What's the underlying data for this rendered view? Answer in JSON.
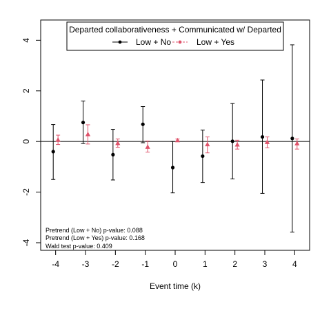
{
  "chart_data": {
    "type": "scatter",
    "xlabel": "Event time (k)",
    "ylabel": "",
    "x_ticks": [
      -4,
      -3,
      -2,
      -1,
      0,
      1,
      2,
      3,
      4
    ],
    "y_ticks": [
      -4,
      -2,
      0,
      2,
      4
    ],
    "xlim": [
      -4.5,
      4.5
    ],
    "ylim": [
      -4.3,
      4.8
    ],
    "grid": false,
    "reference_line": 0,
    "legend": {
      "title": "Departed collaborativeness + Communicated w/ Departed",
      "placement": "top-center"
    },
    "series": [
      {
        "name": "Low + No",
        "color": "#000000",
        "marker": "circle",
        "x": [
          -4,
          -3,
          -2,
          -1,
          0,
          1,
          2,
          3,
          4
        ],
        "y": [
          -0.4,
          0.75,
          -0.52,
          0.68,
          -1.03,
          -0.58,
          0.01,
          0.18,
          0.12
        ],
        "lower": [
          -1.5,
          -0.08,
          -1.52,
          -0.05,
          -2.03,
          -1.62,
          -1.48,
          -2.05,
          -3.58
        ],
        "upper": [
          0.67,
          1.6,
          0.48,
          1.38,
          0.0,
          0.45,
          1.5,
          2.43,
          3.82
        ]
      },
      {
        "name": "Low + Yes",
        "color": "#df536b",
        "marker": "triangle",
        "x": [
          -4,
          -3,
          -2,
          -1,
          0,
          1,
          2,
          3,
          4
        ],
        "y": [
          0.06,
          0.28,
          -0.07,
          -0.22,
          0.04,
          -0.12,
          -0.13,
          -0.03,
          -0.08
        ],
        "lower": [
          -0.12,
          -0.1,
          -0.23,
          -0.42,
          -0.01,
          -0.45,
          -0.3,
          -0.25,
          -0.3
        ],
        "upper": [
          0.25,
          0.66,
          0.1,
          0.02,
          0.1,
          0.18,
          0.05,
          0.18,
          0.1
        ]
      }
    ],
    "annotations": [
      "Pretrend (Low + No) p-value: 0.088",
      "Pretrend (Low + Yes) p-value: 0.168",
      "Wald test p-value: 0.409"
    ]
  }
}
